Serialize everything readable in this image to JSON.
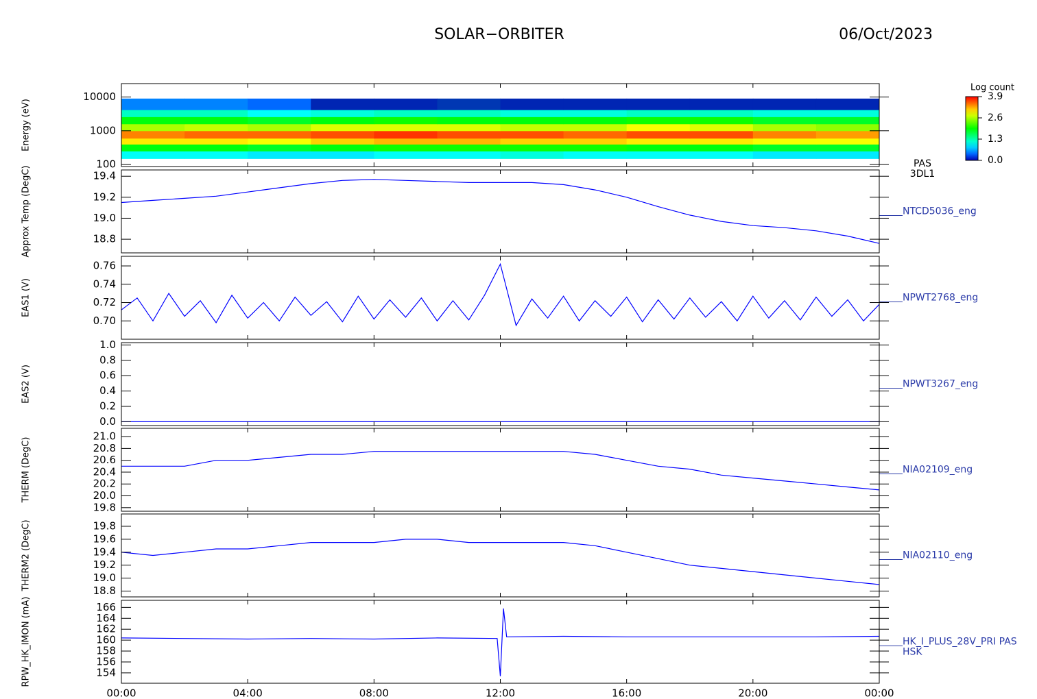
{
  "header": {
    "title": "SOLAR−ORBITER",
    "date": "06/Oct/2023"
  },
  "chart_data": [
    {
      "type": "heatmap",
      "ylabel": "Energy (eV)",
      "log_y": true,
      "ylim": [
        87,
        25000
      ],
      "yticks": [
        100,
        1000,
        10000
      ],
      "xlim": [
        0,
        24
      ],
      "labels": [
        "PAS",
        "3DL1"
      ],
      "x_bins": [
        0,
        2,
        4,
        6,
        8,
        10,
        12,
        14,
        16,
        18,
        20,
        22,
        24
      ],
      "y_bins": [
        150,
        250,
        400,
        600,
        1000,
        1600,
        2600,
        4200,
        9000
      ],
      "z": [
        [
          1.0,
          1.0,
          0.9,
          0.9,
          1.0,
          1.0,
          1.1,
          1.0,
          1.0,
          1.0,
          0.9,
          0.9
        ],
        [
          1.9,
          1.9,
          1.8,
          1.9,
          2.0,
          2.0,
          2.0,
          2.0,
          1.9,
          1.9,
          1.8,
          1.8
        ],
        [
          3.0,
          3.0,
          2.9,
          3.1,
          3.2,
          3.2,
          3.1,
          3.1,
          3.0,
          3.0,
          2.9,
          2.9
        ],
        [
          3.4,
          3.5,
          3.5,
          3.6,
          3.7,
          3.6,
          3.6,
          3.5,
          3.6,
          3.6,
          3.4,
          3.3
        ],
        [
          2.6,
          2.7,
          2.6,
          2.8,
          2.8,
          2.8,
          2.7,
          2.7,
          2.9,
          2.8,
          2.6,
          2.5
        ],
        [
          1.9,
          1.9,
          1.8,
          1.9,
          2.0,
          1.9,
          1.9,
          1.9,
          2.0,
          2.0,
          1.8,
          1.8
        ],
        [
          1.2,
          1.2,
          1.0,
          1.1,
          1.2,
          1.2,
          1.1,
          1.1,
          1.2,
          1.2,
          1.1,
          1.1
        ],
        [
          0.5,
          0.5,
          0.4,
          0.2,
          0.2,
          0.3,
          0.2,
          0.2,
          0.2,
          0.2,
          0.2,
          0.2
        ]
      ],
      "colorbar": {
        "title": "Log count",
        "clim": [
          0,
          3.9
        ],
        "ticks": [
          {
            "value": 0,
            "label": "0.0"
          },
          1.3,
          2.6,
          3.9
        ]
      }
    },
    {
      "type": "line",
      "ylabel": "Approx Temp (DegC)",
      "ylim": [
        18.67,
        19.46
      ],
      "xlim": [
        0,
        24
      ],
      "yticks": [
        {
          "value": 18.8,
          "label": "18.8"
        },
        {
          "value": 19,
          "label": "19.0"
        },
        {
          "value": 19.2,
          "label": "19.2"
        },
        {
          "value": 19.4,
          "label": "19.4"
        }
      ],
      "x": [
        0,
        1,
        2,
        3,
        4,
        5,
        6,
        7,
        8,
        9,
        10,
        11,
        12,
        13,
        14,
        15,
        16,
        17,
        18,
        19,
        20,
        21,
        22,
        23,
        24
      ],
      "series": [
        {
          "name": "NTCD5036_eng",
          "color": "#0000ff",
          "values": [
            19.15,
            19.17,
            19.19,
            19.21,
            19.25,
            19.29,
            19.33,
            19.36,
            19.37,
            19.36,
            19.35,
            19.34,
            19.34,
            19.34,
            19.32,
            19.27,
            19.2,
            19.11,
            19.03,
            18.97,
            18.93,
            18.91,
            18.88,
            18.83,
            18.76
          ]
        }
      ]
    },
    {
      "type": "line",
      "ylabel": "EAS1 (V)",
      "ylim": [
        0.68,
        0.7705
      ],
      "xlim": [
        0,
        24
      ],
      "yticks": [
        {
          "value": 0.7,
          "label": "0.70"
        },
        0.72,
        0.74,
        0.76
      ],
      "x": [
        0,
        0.5,
        1,
        1.5,
        2,
        2.5,
        3,
        3.5,
        4,
        4.5,
        5,
        5.5,
        6,
        6.5,
        7,
        7.5,
        8,
        8.5,
        9,
        9.5,
        10,
        10.5,
        11,
        11.5,
        12,
        12.5,
        13,
        13.5,
        14,
        14.5,
        15,
        15.5,
        16,
        16.5,
        17,
        17.5,
        18,
        18.5,
        19,
        19.5,
        20,
        20.5,
        21,
        21.5,
        22,
        22.5,
        23,
        23.5,
        24
      ],
      "series": [
        {
          "name": "NPWT2768_eng",
          "color": "#0000ff",
          "values": [
            0.712,
            0.725,
            0.7,
            0.73,
            0.705,
            0.722,
            0.698,
            0.728,
            0.703,
            0.72,
            0.7,
            0.726,
            0.706,
            0.721,
            0.699,
            0.727,
            0.702,
            0.723,
            0.704,
            0.725,
            0.7,
            0.722,
            0.701,
            0.728,
            0.762,
            0.695,
            0.724,
            0.703,
            0.727,
            0.7,
            0.722,
            0.705,
            0.726,
            0.699,
            0.723,
            0.702,
            0.725,
            0.704,
            0.721,
            0.7,
            0.727,
            0.703,
            0.722,
            0.701,
            0.726,
            0.705,
            0.723,
            0.7,
            0.718
          ]
        }
      ]
    },
    {
      "type": "line",
      "ylabel": "EAS2 (V)",
      "ylim": [
        -0.05,
        1.03
      ],
      "xlim": [
        0,
        24
      ],
      "yticks": [
        {
          "value": 0,
          "label": "0.0"
        },
        0.2,
        0.4,
        0.6,
        0.8,
        {
          "value": 1,
          "label": "1.0"
        }
      ],
      "x": [
        0,
        24
      ],
      "series": [
        {
          "name": "NPWT3267_eng",
          "color": "#0000ff",
          "values": [
            0,
            0
          ]
        }
      ]
    },
    {
      "type": "line",
      "ylabel": "THERM (DegC)",
      "ylim": [
        19.74,
        21.14
      ],
      "xlim": [
        0,
        24
      ],
      "yticks": [
        19.8,
        {
          "value": 20,
          "label": "20.0"
        },
        20.2,
        20.4,
        20.6,
        20.8,
        {
          "value": 21,
          "label": "21.0"
        }
      ],
      "x": [
        0,
        1,
        2,
        3,
        4,
        5,
        6,
        7,
        8,
        9,
        10,
        11,
        12,
        13,
        14,
        15,
        16,
        17,
        18,
        19,
        20,
        21,
        22,
        23,
        24
      ],
      "series": [
        {
          "name": "NIA02109_eng",
          "color": "#0000ff",
          "values": [
            20.5,
            20.5,
            20.5,
            20.6,
            20.6,
            20.65,
            20.7,
            20.7,
            20.75,
            20.75,
            20.75,
            20.75,
            20.75,
            20.75,
            20.75,
            20.7,
            20.6,
            20.5,
            20.45,
            20.35,
            20.3,
            20.25,
            20.2,
            20.15,
            20.1
          ]
        }
      ]
    },
    {
      "type": "line",
      "ylabel": "THERM2 (DegC)",
      "ylim": [
        18.71,
        19.99
      ],
      "xlim": [
        0,
        24
      ],
      "yticks": [
        18.8,
        {
          "value": 19,
          "label": "19.0"
        },
        19.2,
        19.4,
        19.6,
        19.8
      ],
      "x": [
        0,
        1,
        2,
        3,
        4,
        5,
        6,
        7,
        8,
        9,
        10,
        11,
        12,
        13,
        14,
        15,
        16,
        17,
        18,
        19,
        20,
        21,
        22,
        23,
        24
      ],
      "series": [
        {
          "name": "NIA02110_eng",
          "color": "#0000ff",
          "values": [
            19.4,
            19.35,
            19.4,
            19.45,
            19.45,
            19.5,
            19.55,
            19.55,
            19.55,
            19.6,
            19.6,
            19.55,
            19.55,
            19.55,
            19.55,
            19.5,
            19.4,
            19.3,
            19.2,
            19.15,
            19.1,
            19.05,
            19.0,
            18.95,
            18.9
          ]
        }
      ]
    },
    {
      "type": "line",
      "ylabel": "RPW_HK_IMON (mA)",
      "ylim": [
        152.1,
        167.3
      ],
      "xlim": [
        0,
        24
      ],
      "yticks": [
        154,
        156,
        158,
        160,
        162,
        164,
        166
      ],
      "xticks": [
        {
          "value": 0,
          "label": "00:00"
        },
        {
          "value": 4,
          "label": "04:00"
        },
        {
          "value": 8,
          "label": "08:00"
        },
        {
          "value": 12,
          "label": "12:00"
        },
        {
          "value": 16,
          "label": "16:00"
        },
        {
          "value": 20,
          "label": "20:00"
        },
        {
          "value": 24,
          "label": "00:00"
        }
      ],
      "subtitle": "HSK",
      "x": [
        0,
        2,
        4,
        6,
        8,
        10,
        11.9,
        12.0,
        12.1,
        12.2,
        14,
        16,
        18,
        20,
        22,
        24
      ],
      "series": [
        {
          "name": "HK_I_PLUS_28V_PRI PAS",
          "color": "#0000ff",
          "values": [
            160.4,
            160.3,
            160.2,
            160.3,
            160.2,
            160.4,
            160.3,
            153.4,
            165.8,
            160.6,
            160.7,
            160.6,
            160.6,
            160.6,
            160.6,
            160.7
          ]
        }
      ]
    }
  ]
}
